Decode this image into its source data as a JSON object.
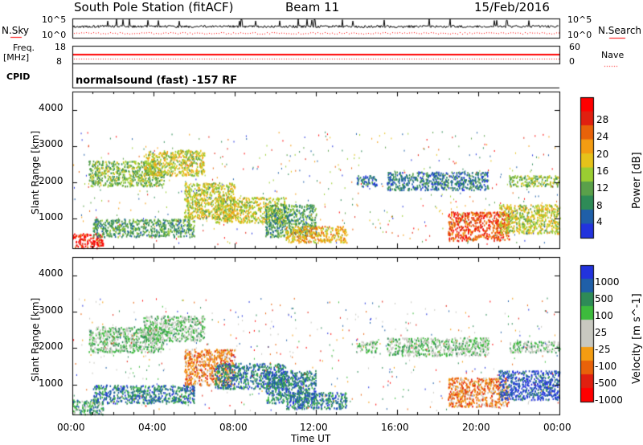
{
  "header": {
    "title": "South Pole Station (fitACF)",
    "beam": "Beam 11",
    "date": "15/Feb/2016"
  },
  "params": {
    "nsky_label": "N.Sky",
    "nsearch_label": "N.Search",
    "freq_label": "Freq.",
    "freq_unit": "[MHz]",
    "nave_label": "Nave",
    "cpid_label": "CPID",
    "cpid_text": "normalsound (fast) -157 RF",
    "noise_ticks_left": [
      "10^5",
      "10^0"
    ],
    "noise_ticks_right": [
      "10^5",
      "10^0"
    ],
    "freq_ticks": [
      "18",
      "8"
    ],
    "nave_ticks": [
      "60",
      "0"
    ]
  },
  "colors": {
    "power": [
      "#2233dd",
      "#1f5fa8",
      "#2e8b57",
      "#5aa04a",
      "#9acd32",
      "#e6c21a",
      "#f39c12",
      "#e8620a",
      "#e02010",
      "#ff0000"
    ],
    "velocity": [
      "#2233dd",
      "#1f5fa8",
      "#2e8b57",
      "#3dbb3d",
      "#c8c8c0",
      "#c8c8c0",
      "#f39c12",
      "#e8620a",
      "#e02010",
      "#ff0000"
    ]
  },
  "chart_data": [
    {
      "type": "heatmap",
      "name": "power",
      "xlabel": "Time UT",
      "ylabel": "Slant Range [km]",
      "xlim": [
        0,
        24
      ],
      "ylim": [
        180,
        4500
      ],
      "x_ticks": [
        "00:00",
        "04:00",
        "08:00",
        "12:00",
        "16:00",
        "20:00",
        "00:00"
      ],
      "y_ticks": [
        "1000",
        "2000",
        "3000",
        "4000"
      ],
      "colorbar": {
        "label": "Power [dB]",
        "range": [
          0,
          32
        ],
        "ticks": [
          "4",
          "8",
          "12",
          "16",
          "20",
          "24",
          "28"
        ]
      },
      "echo_regions": [
        {
          "t": [
            0.0,
            1.5
          ],
          "r": [
            200,
            600
          ],
          "level": 30
        },
        {
          "t": [
            0.8,
            4.5
          ],
          "r": [
            1900,
            2600
          ],
          "level": 14
        },
        {
          "t": [
            3.5,
            6.5
          ],
          "r": [
            2200,
            2900
          ],
          "level": 18
        },
        {
          "t": [
            1.0,
            6.0
          ],
          "r": [
            500,
            1000
          ],
          "level": 12
        },
        {
          "t": [
            5.5,
            8.0
          ],
          "r": [
            1000,
            2000
          ],
          "level": 16
        },
        {
          "t": [
            7.0,
            10.5
          ],
          "r": [
            900,
            1600
          ],
          "level": 17
        },
        {
          "t": [
            9.5,
            12.0
          ],
          "r": [
            500,
            1400
          ],
          "level": 10
        },
        {
          "t": [
            10.5,
            13.5
          ],
          "r": [
            350,
            800
          ],
          "level": 20
        },
        {
          "t": [
            14.0,
            15.0
          ],
          "r": [
            1900,
            2200
          ],
          "level": 8
        },
        {
          "t": [
            15.5,
            20.5
          ],
          "r": [
            1800,
            2300
          ],
          "level": 9
        },
        {
          "t": [
            18.5,
            21.5
          ],
          "r": [
            400,
            1200
          ],
          "level": 26
        },
        {
          "t": [
            21.0,
            24.0
          ],
          "r": [
            600,
            1400
          ],
          "level": 18
        },
        {
          "t": [
            21.5,
            24.0
          ],
          "r": [
            1900,
            2200
          ],
          "level": 14
        }
      ]
    },
    {
      "type": "heatmap",
      "name": "velocity",
      "xlabel": "Time UT",
      "ylabel": "Slant Range [km]",
      "xlim": [
        0,
        24
      ],
      "ylim": [
        180,
        4500
      ],
      "x_ticks": [
        "00:00",
        "04:00",
        "08:00",
        "12:00",
        "16:00",
        "20:00",
        "00:00"
      ],
      "y_ticks": [
        "1000",
        "2000",
        "3000",
        "4000"
      ],
      "colorbar": {
        "label": "Velocity [m s^-1]",
        "ticks": [
          "1000",
          "500",
          "100",
          "25",
          "-25",
          "-100",
          "-500",
          "-1000"
        ]
      },
      "echo_regions": [
        {
          "t": [
            0.0,
            1.5
          ],
          "r": [
            200,
            600
          ],
          "level": 3
        },
        {
          "t": [
            0.8,
            4.5
          ],
          "r": [
            1900,
            2600
          ],
          "level": 4
        },
        {
          "t": [
            3.5,
            6.5
          ],
          "r": [
            2200,
            2900
          ],
          "level": 4
        },
        {
          "t": [
            1.0,
            6.0
          ],
          "r": [
            500,
            1000
          ],
          "level": 2
        },
        {
          "t": [
            5.5,
            8.0
          ],
          "r": [
            1000,
            2000
          ],
          "level": 7
        },
        {
          "t": [
            7.0,
            10.5
          ],
          "r": [
            900,
            1600
          ],
          "level": 2
        },
        {
          "t": [
            9.5,
            12.0
          ],
          "r": [
            500,
            1400
          ],
          "level": 2
        },
        {
          "t": [
            10.5,
            13.5
          ],
          "r": [
            350,
            800
          ],
          "level": 2
        },
        {
          "t": [
            14.0,
            15.0
          ],
          "r": [
            1900,
            2200
          ],
          "level": 4
        },
        {
          "t": [
            15.5,
            20.5
          ],
          "r": [
            1800,
            2300
          ],
          "level": 4
        },
        {
          "t": [
            18.5,
            21.5
          ],
          "r": [
            400,
            1200
          ],
          "level": 7
        },
        {
          "t": [
            21.0,
            24.0
          ],
          "r": [
            600,
            1400
          ],
          "level": 1
        },
        {
          "t": [
            21.5,
            24.0
          ],
          "r": [
            1900,
            2200
          ],
          "level": 4
        }
      ]
    }
  ]
}
